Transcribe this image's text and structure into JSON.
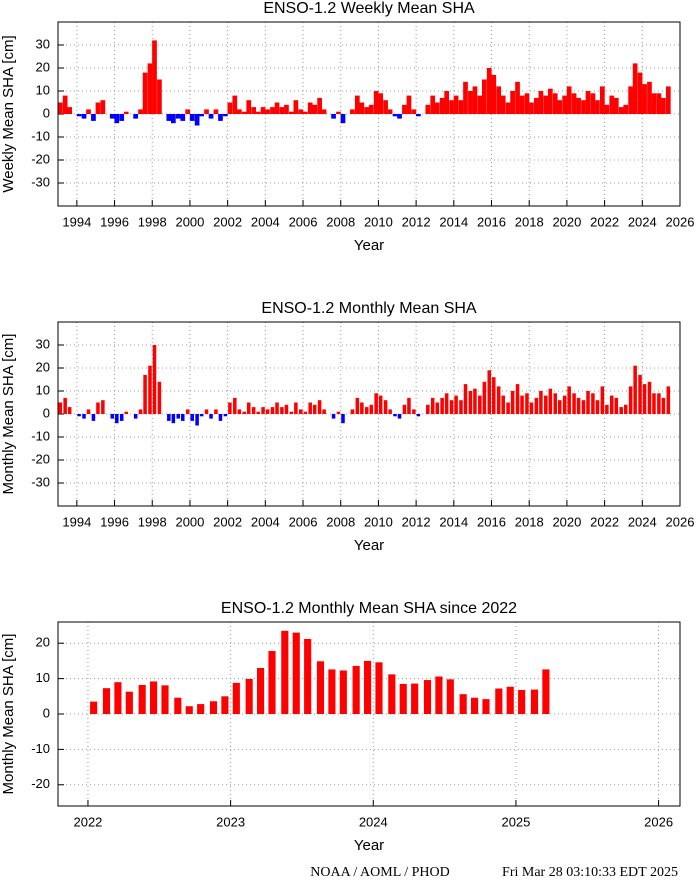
{
  "chart_data": [
    {
      "type": "bar",
      "title": "ENSO-1.2 Weekly Mean SHA",
      "xlabel": "Year",
      "ylabel": "Weekly Mean SHA [cm]",
      "positive_color": "#ff0000",
      "negative_color": "#0000ff",
      "grid": true,
      "xlim": [
        1993,
        2026
      ],
      "xticks": [
        1994,
        1996,
        1998,
        2000,
        2002,
        2004,
        2006,
        2008,
        2010,
        2012,
        2014,
        2016,
        2018,
        2020,
        2022,
        2024,
        2026
      ],
      "ylim": [
        -40,
        40
      ],
      "yticks": [
        -30,
        -20,
        -10,
        0,
        10,
        20,
        30
      ],
      "x": [
        1993.12,
        1993.38,
        1993.62,
        1993.88,
        1994.12,
        1994.38,
        1994.62,
        1994.88,
        1995.12,
        1995.38,
        1995.62,
        1995.88,
        1996.12,
        1996.38,
        1996.62,
        1996.88,
        1997.12,
        1997.38,
        1997.62,
        1997.88,
        1998.12,
        1998.38,
        1998.62,
        1998.88,
        1999.12,
        1999.38,
        1999.62,
        1999.88,
        2000.12,
        2000.38,
        2000.62,
        2000.88,
        2001.12,
        2001.38,
        2001.62,
        2001.88,
        2002.12,
        2002.38,
        2002.62,
        2002.88,
        2003.12,
        2003.38,
        2003.62,
        2003.88,
        2004.12,
        2004.38,
        2004.62,
        2004.88,
        2005.12,
        2005.38,
        2005.62,
        2005.88,
        2006.12,
        2006.38,
        2006.62,
        2006.88,
        2007.12,
        2007.38,
        2007.62,
        2007.88,
        2008.12,
        2008.38,
        2008.62,
        2008.88,
        2009.12,
        2009.38,
        2009.62,
        2009.88,
        2010.12,
        2010.38,
        2010.62,
        2010.88,
        2011.12,
        2011.38,
        2011.62,
        2011.88,
        2012.12,
        2012.38,
        2012.62,
        2012.88,
        2013.12,
        2013.38,
        2013.62,
        2013.88,
        2014.12,
        2014.38,
        2014.62,
        2014.88,
        2015.12,
        2015.38,
        2015.62,
        2015.88,
        2016.12,
        2016.38,
        2016.62,
        2016.88,
        2017.12,
        2017.38,
        2017.62,
        2017.88,
        2018.12,
        2018.38,
        2018.62,
        2018.88,
        2019.12,
        2019.38,
        2019.62,
        2019.88,
        2020.12,
        2020.38,
        2020.62,
        2020.88,
        2021.12,
        2021.38,
        2021.62,
        2021.88,
        2022.12,
        2022.38,
        2022.62,
        2022.88,
        2023.12,
        2023.38,
        2023.62,
        2023.88,
        2024.12,
        2024.38,
        2024.62,
        2024.88,
        2025.12,
        2025.38
      ],
      "values": [
        5,
        8,
        3,
        0,
        -1,
        -2,
        2,
        -3,
        5,
        6,
        0,
        -2,
        -4,
        -3,
        1,
        0,
        -2,
        2,
        18,
        22,
        32,
        15,
        0,
        -3,
        -4,
        -2,
        -3,
        2,
        -3,
        -5,
        -1,
        2,
        -2,
        2,
        -3,
        -1,
        5,
        8,
        2,
        1,
        6,
        3,
        1,
        3,
        2,
        3,
        5,
        3,
        4,
        1,
        6,
        2,
        1,
        5,
        4,
        7,
        2,
        0,
        -2,
        1,
        -4,
        0,
        2,
        8,
        5,
        3,
        4,
        10,
        9,
        6,
        2,
        -1,
        -2,
        4,
        8,
        2,
        -1,
        0,
        4,
        8,
        5,
        7,
        10,
        6,
        8,
        6,
        14,
        10,
        12,
        8,
        15,
        20,
        17,
        12,
        8,
        5,
        10,
        14,
        8,
        9,
        5,
        7,
        10,
        8,
        11,
        9,
        6,
        8,
        12,
        9,
        7,
        6,
        10,
        9,
        6,
        12,
        4,
        8,
        7,
        3,
        4,
        12,
        22,
        18,
        13,
        14,
        9,
        9,
        7,
        12
      ]
    },
    {
      "type": "bar",
      "title": "ENSO-1.2 Monthly Mean SHA",
      "xlabel": "Year",
      "ylabel": "Monthly Mean SHA [cm]",
      "positive_color": "#ff0000",
      "negative_color": "#0000ff",
      "grid": true,
      "xlim": [
        1993,
        2026
      ],
      "xticks": [
        1994,
        1996,
        1998,
        2000,
        2002,
        2004,
        2006,
        2008,
        2010,
        2012,
        2014,
        2016,
        2018,
        2020,
        2022,
        2024,
        2026
      ],
      "ylim": [
        -40,
        40
      ],
      "yticks": [
        -30,
        -20,
        -10,
        0,
        10,
        20,
        30
      ],
      "x": [
        1993.12,
        1993.38,
        1993.62,
        1993.88,
        1994.12,
        1994.38,
        1994.62,
        1994.88,
        1995.12,
        1995.38,
        1995.62,
        1995.88,
        1996.12,
        1996.38,
        1996.62,
        1996.88,
        1997.12,
        1997.38,
        1997.62,
        1997.88,
        1998.12,
        1998.38,
        1998.62,
        1998.88,
        1999.12,
        1999.38,
        1999.62,
        1999.88,
        2000.12,
        2000.38,
        2000.62,
        2000.88,
        2001.12,
        2001.38,
        2001.62,
        2001.88,
        2002.12,
        2002.38,
        2002.62,
        2002.88,
        2003.12,
        2003.38,
        2003.62,
        2003.88,
        2004.12,
        2004.38,
        2004.62,
        2004.88,
        2005.12,
        2005.38,
        2005.62,
        2005.88,
        2006.12,
        2006.38,
        2006.62,
        2006.88,
        2007.12,
        2007.38,
        2007.62,
        2007.88,
        2008.12,
        2008.38,
        2008.62,
        2008.88,
        2009.12,
        2009.38,
        2009.62,
        2009.88,
        2010.12,
        2010.38,
        2010.62,
        2010.88,
        2011.12,
        2011.38,
        2011.62,
        2011.88,
        2012.12,
        2012.38,
        2012.62,
        2012.88,
        2013.12,
        2013.38,
        2013.62,
        2013.88,
        2014.12,
        2014.38,
        2014.62,
        2014.88,
        2015.12,
        2015.38,
        2015.62,
        2015.88,
        2016.12,
        2016.38,
        2016.62,
        2016.88,
        2017.12,
        2017.38,
        2017.62,
        2017.88,
        2018.12,
        2018.38,
        2018.62,
        2018.88,
        2019.12,
        2019.38,
        2019.62,
        2019.88,
        2020.12,
        2020.38,
        2020.62,
        2020.88,
        2021.12,
        2021.38,
        2021.62,
        2021.88,
        2022.12,
        2022.38,
        2022.62,
        2022.88,
        2023.12,
        2023.38,
        2023.62,
        2023.88,
        2024.12,
        2024.38,
        2024.62,
        2024.88,
        2025.12,
        2025.38
      ],
      "values": [
        5,
        7,
        3,
        0,
        -1,
        -2,
        2,
        -3,
        5,
        6,
        0,
        -2,
        -4,
        -3,
        1,
        0,
        -2,
        2,
        17,
        21,
        30,
        14,
        0,
        -3,
        -4,
        -2,
        -3,
        2,
        -3,
        -5,
        -1,
        2,
        -2,
        2,
        -3,
        -1,
        5,
        7,
        2,
        1,
        5,
        3,
        1,
        3,
        2,
        3,
        5,
        3,
        4,
        1,
        5,
        2,
        1,
        5,
        4,
        6,
        2,
        0,
        -2,
        1,
        -4,
        0,
        2,
        7,
        5,
        3,
        4,
        9,
        8,
        6,
        2,
        -1,
        -2,
        4,
        7,
        2,
        -1,
        0,
        4,
        7,
        5,
        7,
        9,
        6,
        8,
        6,
        13,
        10,
        11,
        8,
        14,
        19,
        16,
        12,
        8,
        5,
        10,
        13,
        8,
        9,
        5,
        7,
        10,
        8,
        11,
        9,
        6,
        8,
        12,
        9,
        7,
        6,
        10,
        9,
        6,
        12,
        4,
        8,
        7,
        3,
        4,
        12,
        21,
        17,
        13,
        14,
        9,
        9,
        7,
        12
      ]
    },
    {
      "type": "bar",
      "title": "ENSO-1.2 Monthly Mean SHA since 2022",
      "xlabel": "Year",
      "ylabel": "Monthly Mean SHA [cm]",
      "color": "#ff0000",
      "grid": true,
      "xlim": [
        2021.79,
        2026.15
      ],
      "xticks": [
        2022,
        2023,
        2024,
        2025,
        2026
      ],
      "ylim": [
        -26,
        26
      ],
      "yticks": [
        -20,
        -10,
        0,
        10,
        20
      ],
      "x": [
        2022.04,
        2022.13,
        2022.21,
        2022.29,
        2022.38,
        2022.46,
        2022.54,
        2022.63,
        2022.71,
        2022.79,
        2022.88,
        2022.96,
        2023.04,
        2023.13,
        2023.21,
        2023.29,
        2023.38,
        2023.46,
        2023.54,
        2023.63,
        2023.71,
        2023.79,
        2023.88,
        2023.96,
        2024.04,
        2024.13,
        2024.21,
        2024.29,
        2024.38,
        2024.46,
        2024.54,
        2024.63,
        2024.71,
        2024.79,
        2024.88,
        2024.96,
        2025.04,
        2025.13,
        2025.21
      ],
      "values": [
        3.5,
        7.3,
        9.0,
        6.3,
        8.2,
        9.2,
        8.1,
        4.6,
        2.2,
        2.8,
        3.6,
        5.0,
        8.8,
        9.9,
        13.0,
        17.8,
        23.5,
        23.0,
        21.2,
        14.9,
        12.6,
        12.3,
        13.6,
        15.0,
        14.6,
        11.2,
        8.5,
        8.6,
        9.6,
        10.6,
        9.8,
        5.6,
        4.6,
        4.2,
        7.2,
        7.7,
        6.8,
        6.9,
        12.6
      ]
    }
  ],
  "footer": {
    "left": "NOAA / AOML / PHOD",
    "right": "Fri Mar 28 03:10:33 EDT 2025"
  }
}
